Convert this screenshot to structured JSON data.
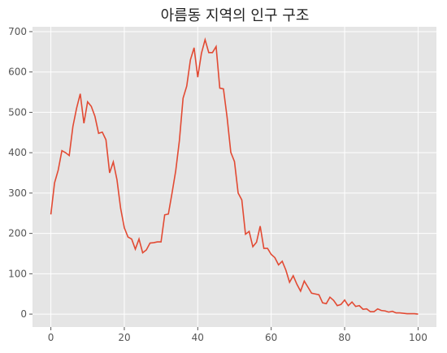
{
  "chart_data": {
    "type": "line",
    "title": "아름동 지역의 인구 구조",
    "xlabel": "",
    "ylabel": "",
    "xlim": [
      -5,
      105
    ],
    "ylim": [
      -32,
      712
    ],
    "x_ticks": [
      0,
      20,
      40,
      60,
      80,
      100
    ],
    "y_ticks": [
      0,
      100,
      200,
      300,
      400,
      500,
      600,
      700
    ],
    "grid": true,
    "legend": "none",
    "colors": {
      "background": "#e5e5e5",
      "grid": "#ffffff",
      "line": "#e24a33"
    },
    "x": [
      0,
      1,
      2,
      3,
      4,
      5,
      6,
      7,
      8,
      9,
      10,
      11,
      12,
      13,
      14,
      15,
      16,
      17,
      18,
      19,
      20,
      21,
      22,
      23,
      24,
      25,
      26,
      27,
      28,
      29,
      30,
      31,
      32,
      33,
      34,
      35,
      36,
      37,
      38,
      39,
      40,
      41,
      42,
      43,
      44,
      45,
      46,
      47,
      48,
      49,
      50,
      51,
      52,
      53,
      54,
      55,
      56,
      57,
      58,
      59,
      60,
      61,
      62,
      63,
      64,
      65,
      66,
      67,
      68,
      69,
      70,
      71,
      72,
      73,
      74,
      75,
      76,
      77,
      78,
      79,
      80,
      81,
      82,
      83,
      84,
      85,
      86,
      87,
      88,
      89,
      90,
      91,
      92,
      93,
      94,
      95,
      96,
      97,
      98,
      99,
      100
    ],
    "series": [
      {
        "values": [
          247,
          325,
          357,
          405,
          400,
          393,
          465,
          510,
          546,
          473,
          526,
          515,
          490,
          448,
          451,
          432,
          350,
          377,
          333,
          262,
          214,
          191,
          186,
          161,
          186,
          152,
          159,
          176,
          177,
          179,
          179,
          246,
          248,
          300,
          355,
          430,
          535,
          565,
          630,
          660,
          587,
          646,
          680,
          648,
          648,
          663,
          560,
          558,
          487,
          401,
          378,
          300,
          283,
          198,
          205,
          167,
          178,
          218,
          163,
          163,
          148,
          140,
          122,
          131,
          109,
          79,
          95,
          74,
          57,
          82,
          67,
          52,
          50,
          48,
          28,
          26,
          42,
          34,
          21,
          24,
          35,
          21,
          30,
          19,
          21,
          12,
          13,
          6,
          6,
          13,
          9,
          8,
          5,
          7,
          3,
          3,
          2,
          1,
          1,
          1,
          0
        ]
      }
    ]
  }
}
